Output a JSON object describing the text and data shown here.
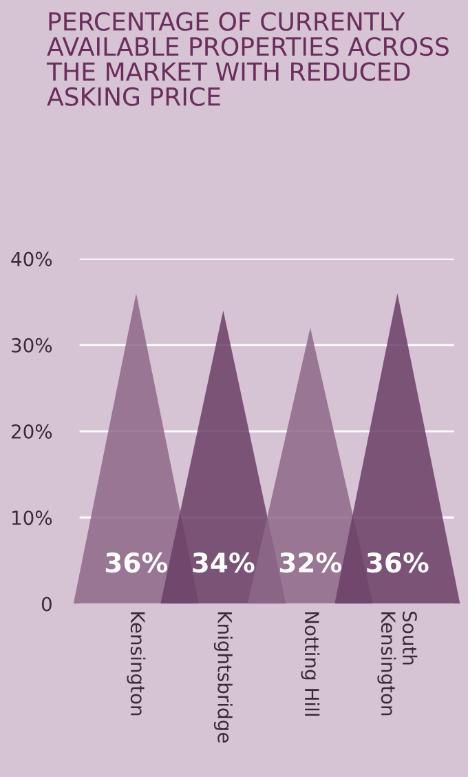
{
  "chart_data": {
    "type": "bar",
    "title": "PERCENTAGE OF CURRENTLY AVAILABLE PROPERTIES ACROSS THE MARKET WITH REDUCED ASKING PRICE",
    "categories": [
      "Kensington",
      "Knightsbridge",
      "Notting Hill",
      "South\nKensington"
    ],
    "values": [
      36,
      34,
      32,
      36
    ],
    "colors": [
      "#8e6888",
      "#6a3f66",
      "#8e6888",
      "#6a3f66"
    ],
    "value_labels": [
      "36%",
      "34%",
      "32%",
      "36%"
    ],
    "ylim": [
      0,
      40
    ],
    "yticks": [
      0,
      {
        "value": 10,
        "label": "10%"
      },
      {
        "value": 20,
        "label": "20%"
      },
      {
        "value": 30,
        "label": "30%"
      },
      {
        "value": 40,
        "label": "40%"
      }
    ],
    "grid": "y"
  }
}
